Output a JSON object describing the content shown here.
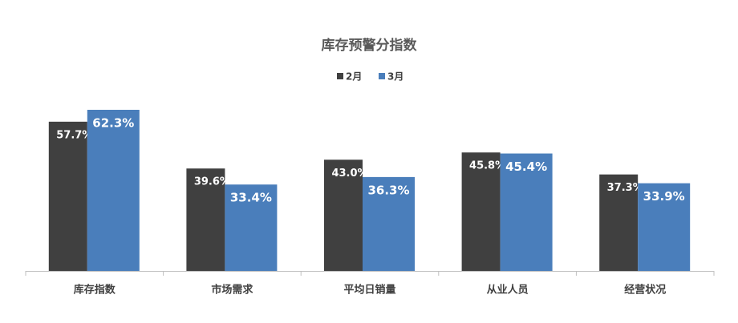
{
  "chart_data": {
    "type": "bar",
    "title": "库存预警分指数",
    "categories": [
      "库存指数",
      "市场需求",
      "平均日销量",
      "从业人员",
      "经营状况"
    ],
    "series": [
      {
        "name": "2月",
        "color": "#404040",
        "values": [
          57.7,
          39.6,
          43.0,
          45.8,
          37.3
        ],
        "value_labels": [
          "57.7%",
          "39.6%",
          "43.0%",
          "45.8%",
          "37.3%"
        ]
      },
      {
        "name": "3月",
        "color": "#4a7ebb",
        "values": [
          62.3,
          33.4,
          36.3,
          45.4,
          33.9
        ],
        "value_labels": [
          "62.3%",
          "33.4%",
          "36.3%",
          "45.4%",
          "33.9%"
        ]
      }
    ],
    "legend": "top"
  }
}
